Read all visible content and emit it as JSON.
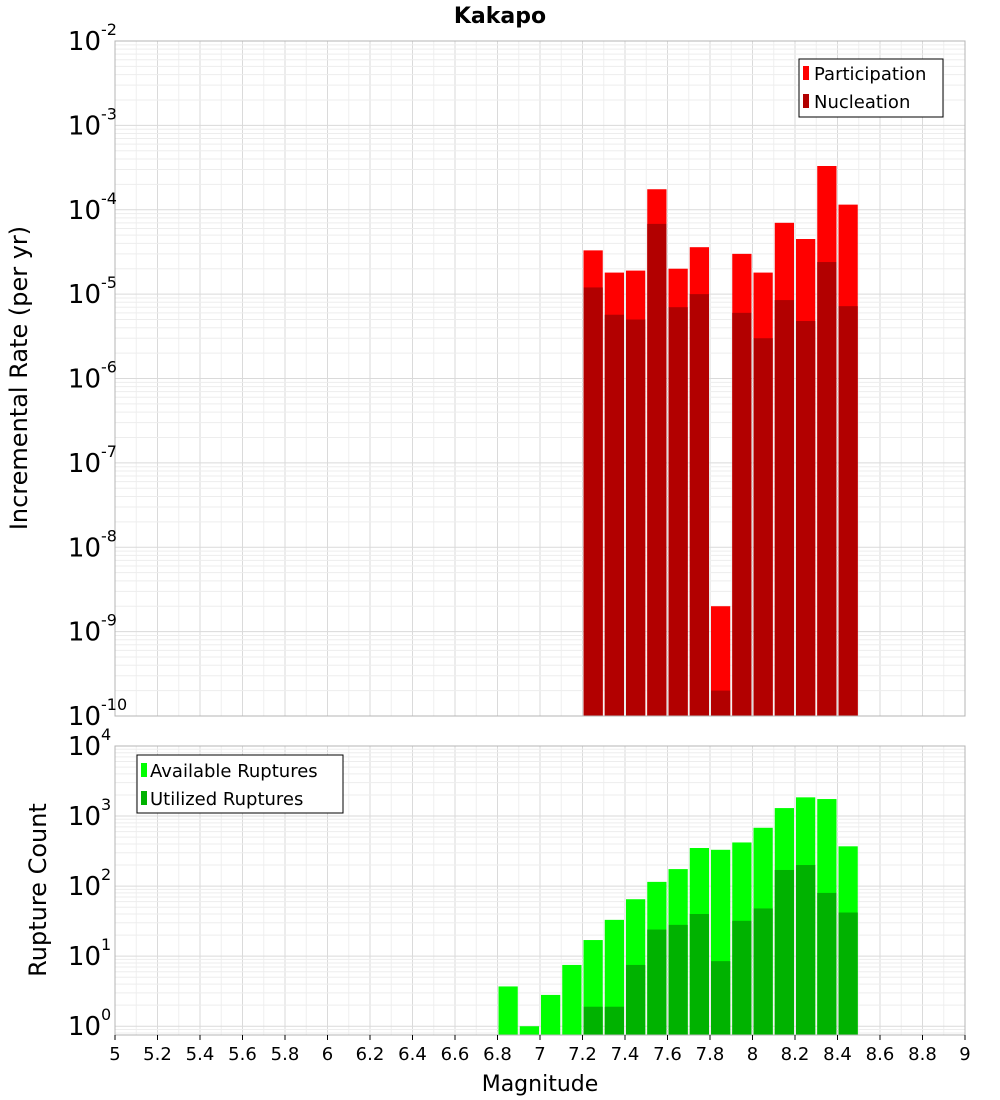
{
  "chart_data": [
    {
      "type": "bar",
      "title": "Kakapo",
      "ylabel": "Incremental Rate (per yr)",
      "y_scale": "log",
      "ylim": [
        1e-10,
        0.01
      ],
      "xlim": [
        5,
        9
      ],
      "y_tick_exponents": [
        "-10",
        "-9",
        "-8",
        "-7",
        "-6",
        "-5",
        "-4",
        "-3",
        "-2"
      ],
      "grid": true,
      "legend_position": "top-right",
      "x": [
        7.25,
        7.35,
        7.45,
        7.55,
        7.65,
        7.75,
        7.85,
        7.95,
        8.05,
        8.15,
        8.25,
        8.35,
        8.45
      ],
      "series": [
        {
          "name": "Participation",
          "color": "#ff0000",
          "values": [
            3.3e-05,
            1.8e-05,
            1.9e-05,
            0.000175,
            2e-05,
            3.6e-05,
            2e-09,
            3e-05,
            1.8e-05,
            7e-05,
            4.5e-05,
            0.00033,
            0.000115
          ]
        },
        {
          "name": "Nucleation",
          "color": "#b20000",
          "values": [
            1.2e-05,
            5.7e-06,
            5e-06,
            6.8e-05,
            7e-06,
            1e-05,
            2e-10,
            6e-06,
            3e-06,
            8.5e-06,
            4.8e-06,
            2.4e-05,
            7.2e-06
          ]
        }
      ]
    },
    {
      "type": "bar",
      "ylabel": "Rupture Count",
      "xlabel": "Magnitude",
      "y_scale": "log",
      "ylim": [
        0.75,
        10000
      ],
      "xlim": [
        5,
        9
      ],
      "x_ticks": [
        "5",
        "5.2",
        "5.4",
        "5.6",
        "5.8",
        "6",
        "6.2",
        "6.4",
        "6.6",
        "6.8",
        "7",
        "7.2",
        "7.4",
        "7.6",
        "7.8",
        "8",
        "8.2",
        "8.4",
        "8.6",
        "8.8",
        "9"
      ],
      "y_tick_exponents": [
        "0",
        "1",
        "2",
        "3",
        "4"
      ],
      "grid": true,
      "legend_position": "top-left",
      "series": [
        {
          "name": "Available Ruptures",
          "color": "#00ff00",
          "x": [
            6.85,
            6.95,
            7.05,
            7.15,
            7.25,
            7.35,
            7.45,
            7.55,
            7.65,
            7.75,
            7.85,
            7.95,
            8.05,
            8.15,
            8.25,
            8.35,
            8.45
          ],
          "values": [
            3.7,
            1,
            2.8,
            7.5,
            17,
            33,
            65,
            115,
            175,
            350,
            330,
            420,
            680,
            1300,
            1850,
            1750,
            370
          ]
        },
        {
          "name": "Utilized Ruptures",
          "color": "#00b200",
          "x": [
            7.25,
            7.35,
            7.45,
            7.55,
            7.65,
            7.75,
            7.85,
            7.95,
            8.05,
            8.15,
            8.25,
            8.35,
            8.45
          ],
          "values": [
            1.9,
            1.9,
            7.5,
            24,
            28,
            40,
            8.5,
            32,
            48,
            170,
            200,
            80,
            42
          ]
        }
      ]
    }
  ]
}
